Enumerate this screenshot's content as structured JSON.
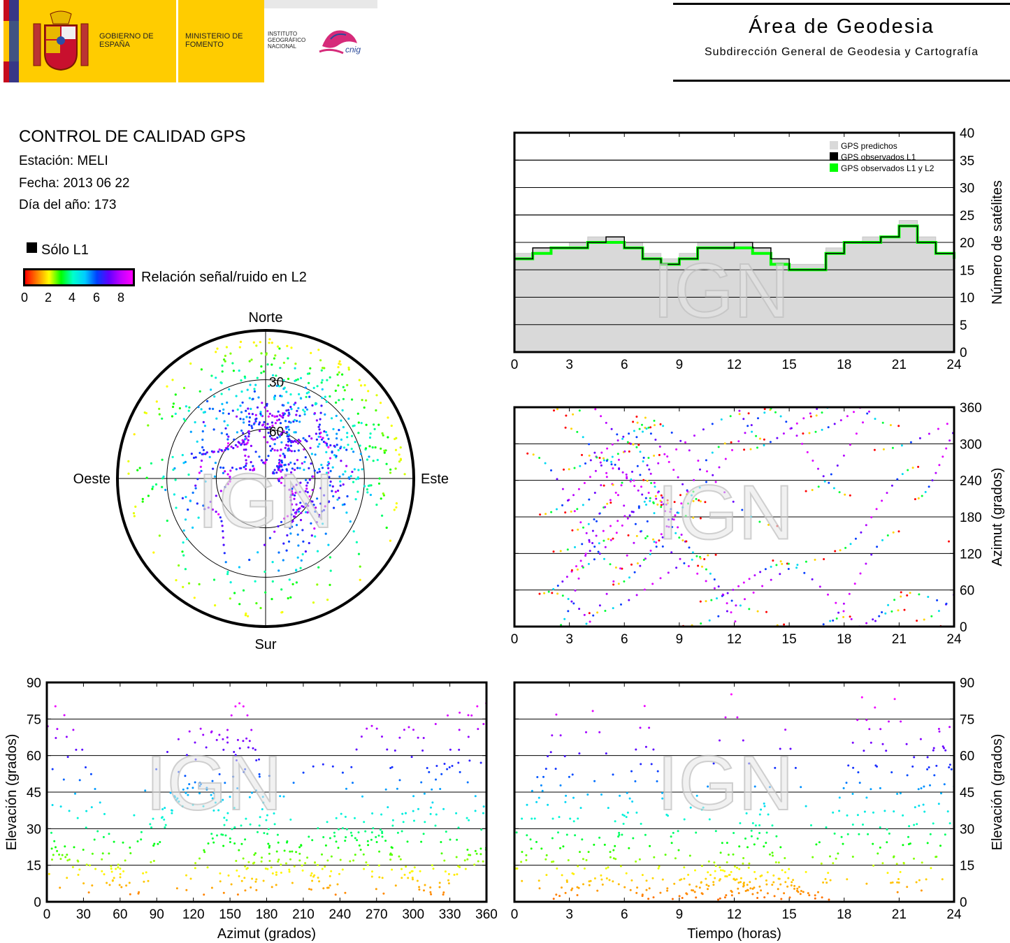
{
  "header": {
    "gobierno": "GOBIERNO DE ESPAÑA",
    "ministerio": "MINISTERIO DE FOMENTO",
    "instituto": "INSTITUTO GEOGRÁFICO NACIONAL",
    "cnig": "cnig",
    "area_title": "Área de Geodesia",
    "area_subtitle": "Subdirección General de Geodesia y Cartografía"
  },
  "info": {
    "title": "CONTROL DE CALIDAD GPS",
    "station": "Estación: MELI",
    "date": "Fecha: 2013 06 22",
    "doy": "Día del año: 173"
  },
  "legend": {
    "solo_l1": "Sólo L1",
    "snr_label": "Relación señal/ruido en L2",
    "snr_ticks": [
      "0",
      "2",
      "4",
      "6",
      "8"
    ]
  },
  "watermark": "IGN",
  "colors": {
    "predicted": "#d9d9d9",
    "observed_l1": "#000000",
    "observed_l1l2": "#00ff00",
    "track_low": "#ff0000",
    "track_high": "#ff00ff"
  },
  "chart_data": [
    {
      "type": "area",
      "id": "satellites",
      "ylabel": "Número de satélites",
      "xlim": [
        0,
        24
      ],
      "ylim": [
        0,
        40
      ],
      "x_ticks": [
        "0",
        "3",
        "6",
        "9",
        "12",
        "15",
        "18",
        "21",
        "24"
      ],
      "y_ticks": [
        "0",
        "5",
        "10",
        "15",
        "20",
        "25",
        "30",
        "35",
        "40"
      ],
      "legend_position": "top-right",
      "grid": true,
      "series": [
        {
          "name": "GPS predichos",
          "x": [
            0,
            1,
            2,
            3,
            4,
            5,
            6,
            7,
            8,
            9,
            10,
            11,
            12,
            13,
            14,
            15,
            16,
            17,
            18,
            19,
            20,
            21,
            22,
            23,
            24
          ],
          "values": [
            18,
            19,
            19,
            20,
            21,
            21,
            20,
            18,
            17,
            18,
            20,
            20,
            20,
            19,
            17,
            16,
            16,
            19,
            20,
            21,
            21,
            24,
            21,
            18,
            17
          ]
        },
        {
          "name": "GPS observados L1",
          "x": [
            0,
            1,
            2,
            3,
            4,
            5,
            6,
            7,
            8,
            9,
            10,
            11,
            12,
            13,
            14,
            15,
            16,
            17,
            18,
            19,
            20,
            21,
            22,
            23,
            24
          ],
          "values": [
            17,
            19,
            19,
            19,
            20,
            21,
            19,
            17,
            16,
            17,
            19,
            19,
            20,
            19,
            17,
            15,
            15,
            18,
            20,
            20,
            21,
            23,
            20,
            18,
            17
          ]
        },
        {
          "name": "GPS observados L1 y L2",
          "x": [
            0,
            1,
            2,
            3,
            4,
            5,
            6,
            7,
            8,
            9,
            10,
            11,
            12,
            13,
            14,
            15,
            16,
            17,
            18,
            19,
            20,
            21,
            22,
            23,
            24
          ],
          "values": [
            17,
            18,
            19,
            19,
            20,
            20,
            19,
            17,
            16,
            17,
            19,
            19,
            19,
            18,
            16,
            15,
            15,
            18,
            20,
            20,
            21,
            23,
            20,
            18,
            17
          ]
        }
      ]
    },
    {
      "type": "scatter",
      "id": "skyplot",
      "directions": {
        "north": "Norte",
        "south": "Sur",
        "east": "Este",
        "west": "Oeste"
      },
      "elevation_rings": [
        "30",
        "60"
      ]
    },
    {
      "type": "scatter",
      "id": "azimuth_time",
      "ylabel": "Azimut (grados)",
      "xlim": [
        0,
        24
      ],
      "ylim": [
        0,
        360
      ],
      "x_ticks": [
        "0",
        "3",
        "6",
        "9",
        "12",
        "15",
        "18",
        "21",
        "24"
      ],
      "y_ticks": [
        "0",
        "60",
        "120",
        "180",
        "240",
        "300",
        "360"
      ]
    },
    {
      "type": "scatter",
      "id": "elevation_azimuth",
      "xlabel": "Azimut (grados)",
      "ylabel": "Elevación (grados)",
      "xlim": [
        0,
        360
      ],
      "ylim": [
        0,
        90
      ],
      "x_ticks": [
        "0",
        "30",
        "60",
        "90",
        "120",
        "150",
        "180",
        "210",
        "240",
        "270",
        "300",
        "330",
        "360"
      ],
      "y_ticks": [
        "0",
        "15",
        "30",
        "45",
        "60",
        "75",
        "90"
      ]
    },
    {
      "type": "scatter",
      "id": "elevation_time",
      "xlabel": "Tiempo (horas)",
      "ylabel": "Elevación (grados)",
      "xlim": [
        0,
        24
      ],
      "ylim": [
        0,
        90
      ],
      "x_ticks": [
        "0",
        "3",
        "6",
        "9",
        "12",
        "15",
        "18",
        "21",
        "24"
      ],
      "y_ticks": [
        "0",
        "15",
        "30",
        "45",
        "60",
        "75",
        "90"
      ]
    }
  ]
}
